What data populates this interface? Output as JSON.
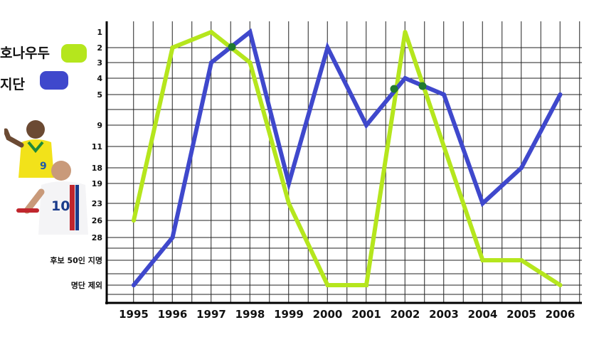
{
  "legend": {
    "ronaldo": {
      "label": "호나우두",
      "color": "#b5e61d"
    },
    "zidane": {
      "label": "지단",
      "color": "#3f48cc"
    }
  },
  "chart_data": {
    "type": "line",
    "title": "",
    "xlabel": "",
    "ylabel": "",
    "grid": true,
    "y_inverted": true,
    "legend_position": "top-left",
    "categories": [
      "1995",
      "1996",
      "1997",
      "1998",
      "1999",
      "2000",
      "2001",
      "2002",
      "2003",
      "2004",
      "2005",
      "2006"
    ],
    "y_ticks": [
      "1",
      "2",
      "3",
      "4",
      "5",
      "9",
      "11",
      "18",
      "19",
      "23",
      "26",
      "28",
      "후보 50인 지명",
      "명단 제외"
    ],
    "series": [
      {
        "name": "호나우두",
        "color": "#b5e61d",
        "values": [
          "26",
          "2",
          "1",
          "3",
          "23",
          "명단 제외",
          "명단 제외",
          "1",
          "11",
          "후보 50인 지명",
          "후보 50인 지명",
          "명단 제외"
        ]
      },
      {
        "name": "지단",
        "color": "#3f48cc",
        "values": [
          "명단 제외",
          "28",
          "3",
          "1",
          "19",
          "2",
          "9",
          "4",
          "5",
          "23",
          "18",
          "5"
        ]
      }
    ],
    "intersections": [
      {
        "x": "1997.5",
        "y": "2"
      },
      {
        "x": "2001.8",
        "y": "5"
      },
      {
        "x": "2002.3",
        "y": "5"
      }
    ]
  }
}
